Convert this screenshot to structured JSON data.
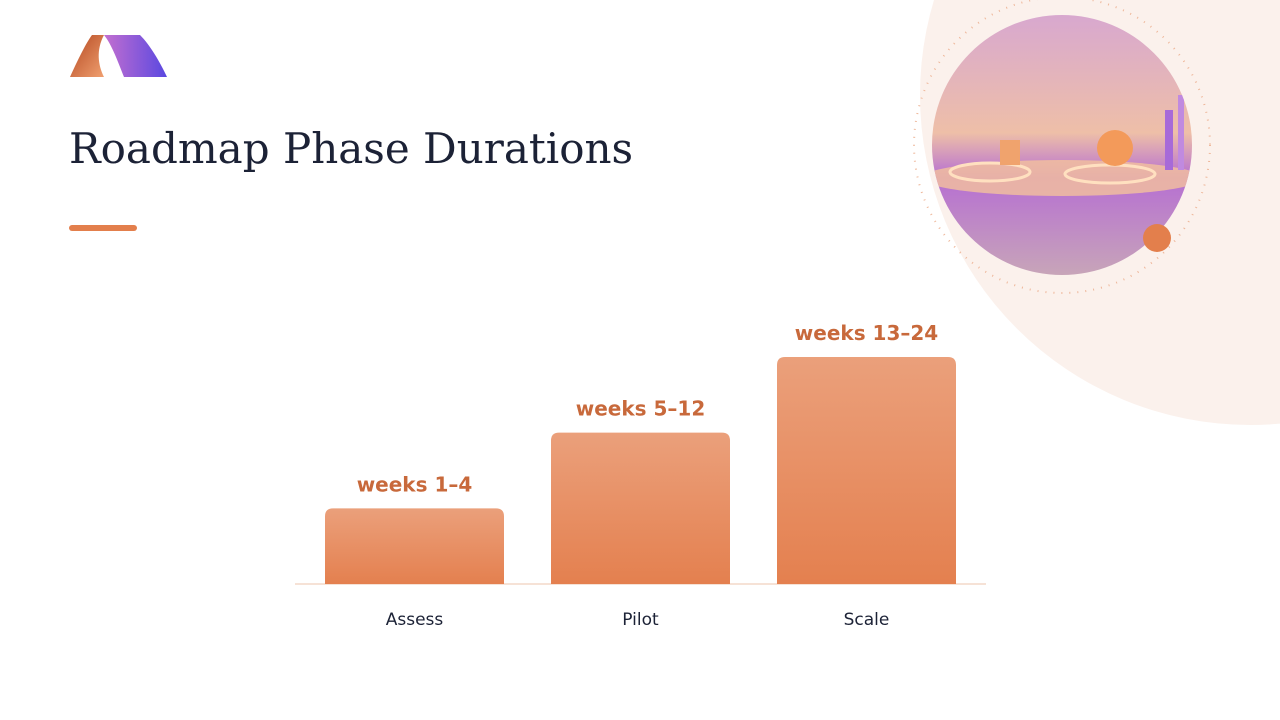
{
  "chart_data": {
    "type": "bar",
    "title": "Roadmap Phase Durations",
    "categories": [
      "Assess",
      "Pilot",
      "Scale"
    ],
    "values": [
      4,
      8,
      12
    ],
    "value_labels": [
      "weeks 1–4",
      "weeks 5–12",
      "weeks 13–24"
    ],
    "color": "#e4804f",
    "ylim": [
      0,
      12
    ]
  }
}
